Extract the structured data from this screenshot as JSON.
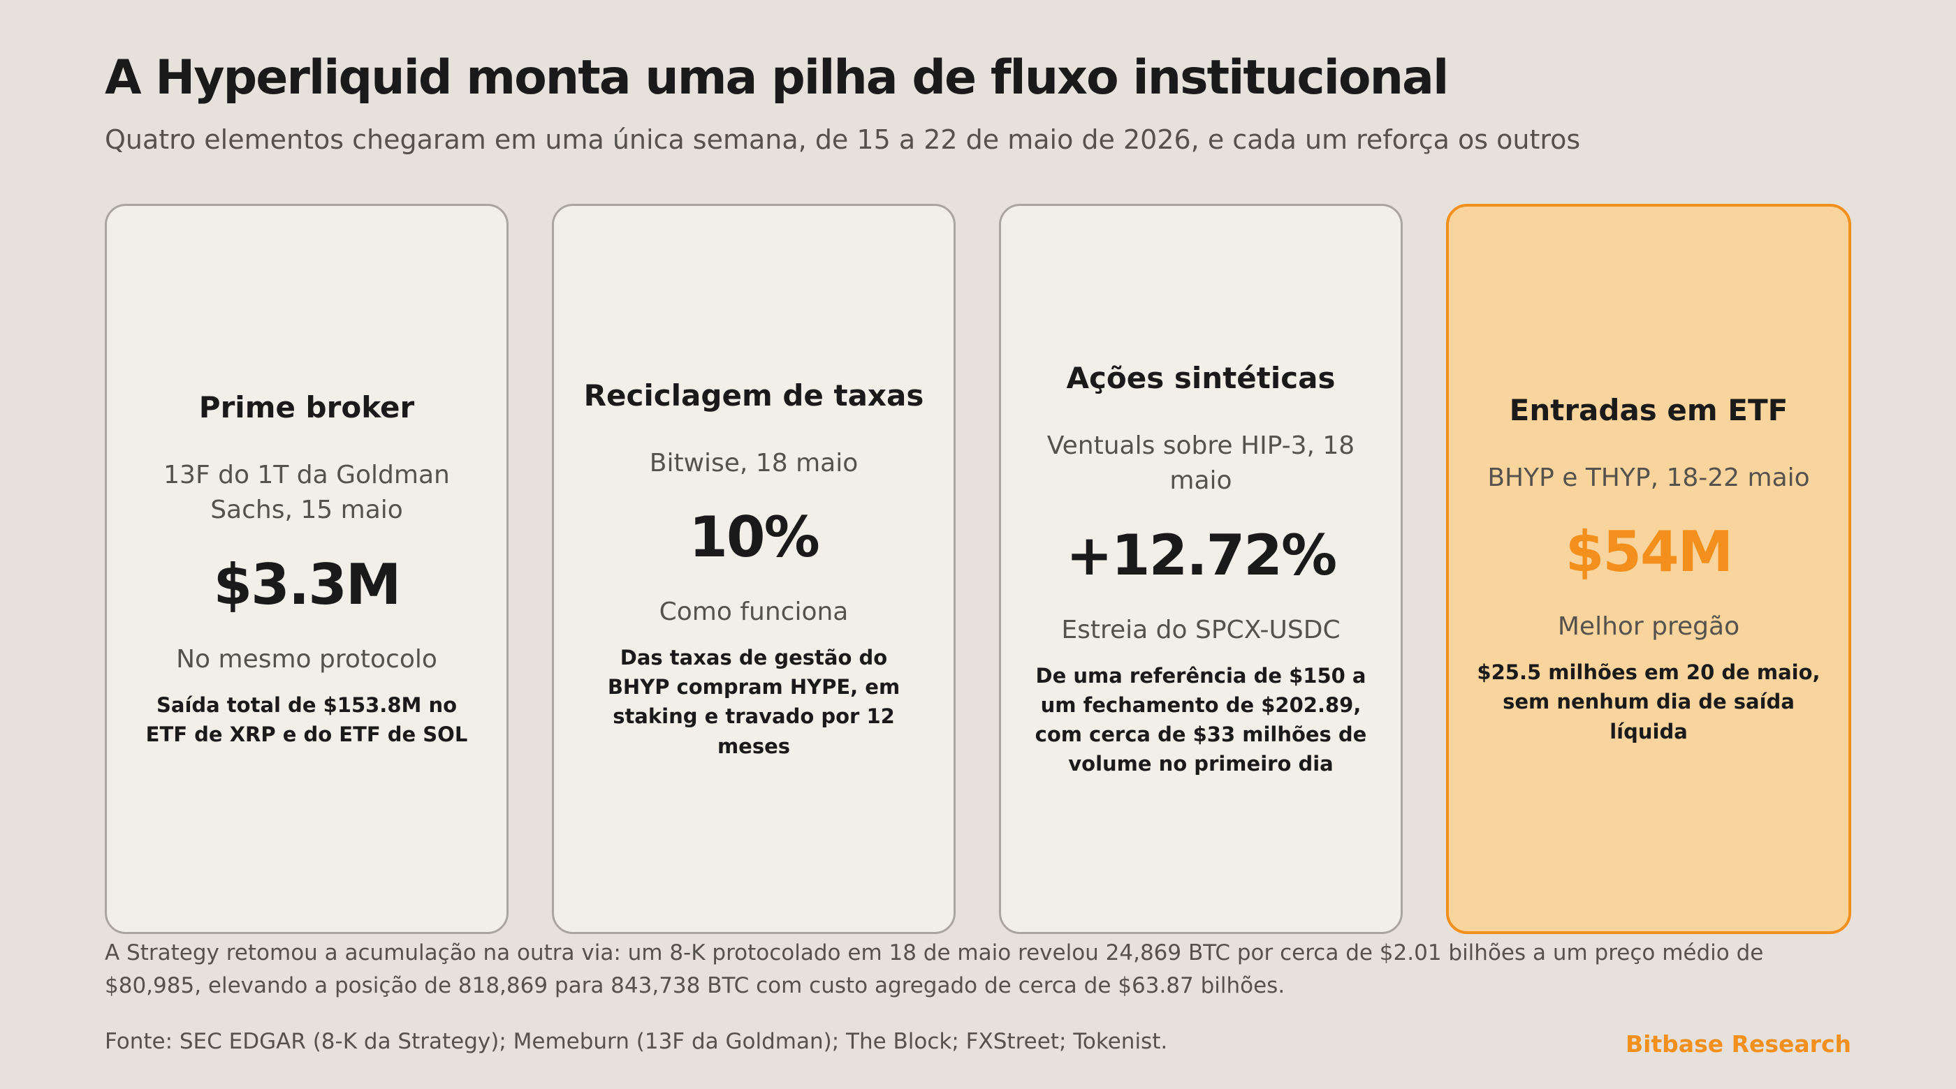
{
  "header": {
    "title": "A Hyperliquid monta uma pilha de fluxo institucional",
    "subtitle": "Quatro elementos chegaram em uma única semana, de 15 a 22 de maio de 2026, e cada um reforça os outros"
  },
  "cards": [
    {
      "title": "Prime broker",
      "source": "13F do 1T da Goldman Sachs, 15 maio",
      "value": "$3.3M",
      "label": "No mesmo protocolo",
      "detail": "Saída total de $153.8M no ETF de XRP e do ETF de SOL"
    },
    {
      "title": "Reciclagem de taxas",
      "source": "Bitwise, 18 maio",
      "value": "10%",
      "label": "Como funciona",
      "detail": "Das taxas de gestão do BHYP compram HYPE, em staking e travado por 12 meses"
    },
    {
      "title": "Ações sintéticas",
      "source": "Ventuals sobre HIP-3, 18 maio",
      "value": "+12.72%",
      "label": "Estreia do SPCX-USDC",
      "detail": "De uma referência de $150 a um fechamento de $202.89, com cerca de $33 milhões de volume no primeiro dia"
    },
    {
      "title": "Entradas em ETF",
      "source": "BHYP e THYP, 18-22 maio",
      "value": "$54M",
      "label": "Melhor pregão",
      "detail": "$25.5 milhões em 20 de maio, sem nenhum dia de saída líquida"
    }
  ],
  "footer": {
    "note": "A Strategy retomou a acumulação na outra via: um 8-K protocolado em 18 de maio revelou 24,869 BTC por cerca de $2.01 bilhões a um preço médio de $80,985, elevando a posição de 818,869 para 843,738 BTC com custo agregado de cerca de $63.87 bilhões.",
    "source": "Fonte: SEC EDGAR (8-K da Strategy); Memeburn (13F da Goldman); The Block; FXStreet; Tokenist.",
    "brand": "Bitbase Research"
  },
  "colors": {
    "background": "#e6e1db",
    "card": "#f2efe9",
    "highlight_card": "#f9d49c",
    "accent": "#f3901d"
  }
}
